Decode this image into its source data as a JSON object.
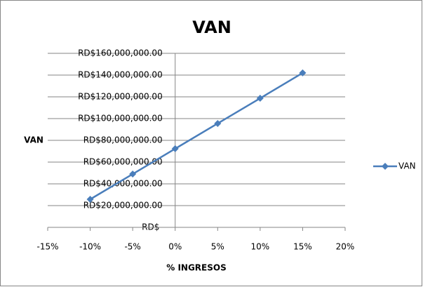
{
  "chart_data": {
    "type": "line",
    "title": "VAN",
    "y_label": "VAN",
    "x_label": "% INGRESOS",
    "x": [
      -10,
      -5,
      0,
      5,
      10,
      15
    ],
    "series": [
      {
        "name": "VAN",
        "color": "#4a7ebb",
        "values": [
          25800000,
          49000000,
          72300000,
          95500000,
          118700000,
          142000000
        ]
      }
    ],
    "xlim": [
      -15,
      20
    ],
    "xticks": [
      {
        "value": -15,
        "label": "-15%"
      },
      {
        "value": -10,
        "label": "-10%"
      },
      {
        "value": -5,
        "label": "-5%"
      },
      {
        "value": 0,
        "label": "0%"
      },
      {
        "value": 5,
        "label": "5%"
      },
      {
        "value": 10,
        "label": "10%"
      },
      {
        "value": 15,
        "label": "15%"
      },
      {
        "value": 20,
        "label": "20%"
      }
    ],
    "ylim": [
      0,
      160000000
    ],
    "yticks": [
      {
        "value": 0,
        "label": "RD$-"
      },
      {
        "value": 20000000,
        "label": "RD$20,000,000.00"
      },
      {
        "value": 40000000,
        "label": "RD$40,000,000.00"
      },
      {
        "value": 60000000,
        "label": "RD$60,000,000.00"
      },
      {
        "value": 80000000,
        "label": "RD$80,000,000.00"
      },
      {
        "value": 100000000,
        "label": "RD$100,000,000.00"
      },
      {
        "value": 120000000,
        "label": "RD$120,000,000.00"
      },
      {
        "value": 140000000,
        "label": "RD$140,000,000.00"
      },
      {
        "value": 160000000,
        "label": "RD$160,000,000.00"
      }
    ],
    "grid": true,
    "legend": "right"
  }
}
